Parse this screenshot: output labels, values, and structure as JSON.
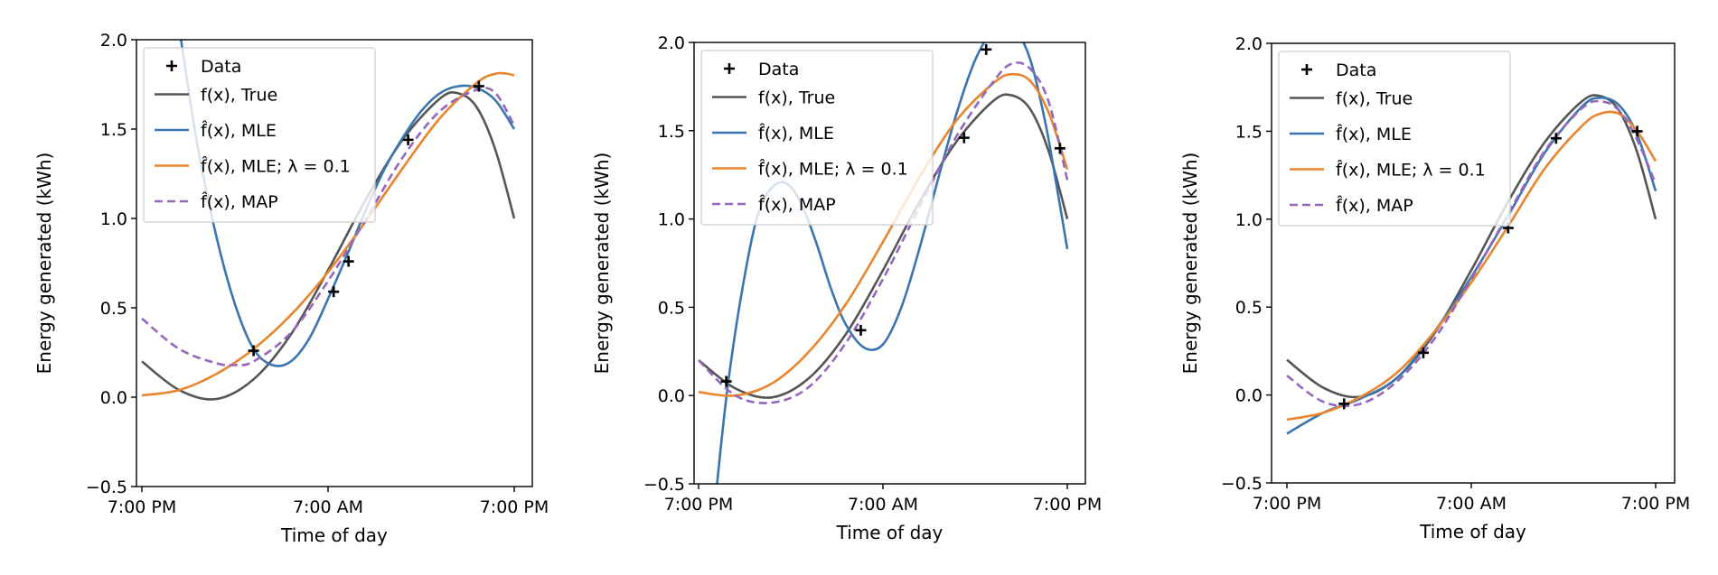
{
  "chart_data": [
    {
      "type": "line",
      "xlabel": "Time of day",
      "ylabel": "Energy generated (kWh)",
      "xlim": [
        0,
        1
      ],
      "ylim": [
        -0.5,
        2.0
      ],
      "xticks": [
        {
          "v": 0,
          "label": "7:00 PM"
        },
        {
          "v": 0.5,
          "label": "7:00 AM"
        },
        {
          "v": 1,
          "label": "7:00 PM"
        }
      ],
      "yticks": [
        {
          "v": -0.5,
          "label": "−0.5"
        },
        {
          "v": 0.0,
          "label": "0.0"
        },
        {
          "v": 0.5,
          "label": "0.5"
        },
        {
          "v": 1.0,
          "label": "1.0"
        },
        {
          "v": 1.5,
          "label": "1.5"
        },
        {
          "v": 2.0,
          "label": "2.0"
        }
      ],
      "legend": {
        "location": "upper-left"
      },
      "points": {
        "name": "Data",
        "x": [
          0.3,
          0.515,
          0.555,
          0.715,
          0.905
        ],
        "y": [
          0.26,
          0.59,
          0.76,
          1.44,
          1.74
        ]
      },
      "series": [
        {
          "name": "f(x), True",
          "color": "#555555",
          "style": "solid",
          "x": [
            0,
            0.1,
            0.2,
            0.3,
            0.4,
            0.5,
            0.6,
            0.7,
            0.8,
            0.85,
            0.9,
            0.95,
            1.0
          ],
          "y": [
            0.2,
            0.04,
            -0.01,
            0.1,
            0.35,
            0.71,
            1.1,
            1.44,
            1.67,
            1.7,
            1.62,
            1.38,
            1.0
          ]
        },
        {
          "name": "f̂(x), MLE",
          "color": "#3a75b0",
          "style": "solid",
          "x": [
            0.105,
            0.15,
            0.2,
            0.25,
            0.3,
            0.35,
            0.4,
            0.45,
            0.5,
            0.55,
            0.6,
            0.65,
            0.7,
            0.75,
            0.8,
            0.85,
            0.9,
            0.95,
            1.0
          ],
          "y": [
            2.0,
            1.4,
            0.9,
            0.52,
            0.27,
            0.18,
            0.2,
            0.33,
            0.55,
            0.79,
            1.04,
            1.27,
            1.45,
            1.6,
            1.7,
            1.74,
            1.73,
            1.66,
            1.5
          ]
        },
        {
          "name": "f̂(x), MLE; λ = 0.1",
          "color": "#e9852c",
          "style": "solid",
          "x": [
            0,
            0.1,
            0.2,
            0.3,
            0.4,
            0.5,
            0.6,
            0.7,
            0.8,
            0.9,
            0.95,
            0.98,
            1.0
          ],
          "y": [
            0.01,
            0.04,
            0.13,
            0.27,
            0.46,
            0.7,
            0.98,
            1.28,
            1.56,
            1.76,
            1.81,
            1.81,
            1.8
          ]
        },
        {
          "name": "f̂(x), MAP",
          "color": "#9467bd",
          "style": "dashed",
          "x": [
            0,
            0.1,
            0.2,
            0.25,
            0.3,
            0.4,
            0.5,
            0.6,
            0.7,
            0.8,
            0.9,
            0.95,
            1.0
          ],
          "y": [
            0.44,
            0.27,
            0.19,
            0.18,
            0.2,
            0.36,
            0.65,
            0.99,
            1.34,
            1.6,
            1.72,
            1.7,
            1.52
          ]
        }
      ]
    },
    {
      "type": "line",
      "xlabel": "Time of day",
      "ylabel": "Energy generated (kWh)",
      "xlim": [
        0,
        1
      ],
      "ylim": [
        -0.5,
        2.0
      ],
      "xticks": [
        {
          "v": 0,
          "label": "7:00 PM"
        },
        {
          "v": 0.5,
          "label": "7:00 AM"
        },
        {
          "v": 1,
          "label": "7:00 PM"
        }
      ],
      "yticks": [
        {
          "v": -0.5,
          "label": "−0.5"
        },
        {
          "v": 0.0,
          "label": "0.0"
        },
        {
          "v": 0.5,
          "label": "0.5"
        },
        {
          "v": 1.0,
          "label": "1.0"
        },
        {
          "v": 1.5,
          "label": "1.5"
        },
        {
          "v": 2.0,
          "label": "2.0"
        }
      ],
      "legend": {
        "location": "upper-left"
      },
      "points": {
        "name": "Data",
        "x": [
          0.075,
          0.44,
          0.72,
          0.78,
          0.98
        ],
        "y": [
          0.08,
          0.37,
          1.46,
          1.96,
          1.4
        ]
      },
      "series": [
        {
          "name": "f(x), True",
          "color": "#555555",
          "style": "solid",
          "x": [
            0,
            0.1,
            0.2,
            0.3,
            0.4,
            0.5,
            0.6,
            0.7,
            0.8,
            0.85,
            0.9,
            0.95,
            1.0
          ],
          "y": [
            0.2,
            0.04,
            -0.01,
            0.1,
            0.35,
            0.71,
            1.1,
            1.44,
            1.67,
            1.7,
            1.62,
            1.38,
            1.0
          ]
        },
        {
          "name": "f̂(x), MLE",
          "color": "#3a75b0",
          "style": "solid",
          "x": [
            0.05,
            0.08,
            0.12,
            0.16,
            0.2,
            0.24,
            0.28,
            0.32,
            0.36,
            0.4,
            0.45,
            0.5,
            0.55,
            0.6,
            0.65,
            0.7,
            0.75,
            0.8,
            0.833,
            0.86,
            0.9,
            0.94,
            0.97,
            1.0
          ],
          "y": [
            -0.5,
            0.07,
            0.62,
            1.02,
            1.18,
            1.2,
            1.08,
            0.86,
            0.6,
            0.4,
            0.27,
            0.29,
            0.5,
            0.84,
            1.23,
            1.6,
            1.9,
            2.08,
            2.12,
            2.08,
            1.9,
            1.55,
            1.2,
            0.83
          ]
        },
        {
          "name": "f̂(x), MLE; λ = 0.1",
          "color": "#e9852c",
          "style": "solid",
          "x": [
            0,
            0.1,
            0.2,
            0.3,
            0.4,
            0.5,
            0.6,
            0.7,
            0.8,
            0.85,
            0.9,
            0.95,
            1.0
          ],
          "y": [
            0.02,
            0.0,
            0.07,
            0.25,
            0.52,
            0.87,
            1.24,
            1.56,
            1.77,
            1.82,
            1.78,
            1.6,
            1.28
          ]
        },
        {
          "name": "f̂(x), MAP",
          "color": "#9467bd",
          "style": "dashed",
          "x": [
            0,
            0.1,
            0.2,
            0.3,
            0.4,
            0.5,
            0.6,
            0.7,
            0.8,
            0.85,
            0.9,
            0.95,
            1.0
          ],
          "y": [
            0.2,
            0.0,
            -0.04,
            0.05,
            0.3,
            0.66,
            1.07,
            1.47,
            1.78,
            1.88,
            1.85,
            1.66,
            1.22
          ]
        }
      ]
    },
    {
      "type": "line",
      "xlabel": "Time of day",
      "ylabel": "Energy generated (kWh)",
      "xlim": [
        0,
        1
      ],
      "ylim": [
        -0.5,
        2.0
      ],
      "xticks": [
        {
          "v": 0,
          "label": "7:00 PM"
        },
        {
          "v": 0.5,
          "label": "7:00 AM"
        },
        {
          "v": 1,
          "label": "7:00 PM"
        }
      ],
      "yticks": [
        {
          "v": -0.5,
          "label": "−0.5"
        },
        {
          "v": 0.0,
          "label": "0.0"
        },
        {
          "v": 0.5,
          "label": "0.5"
        },
        {
          "v": 1.0,
          "label": "1.0"
        },
        {
          "v": 1.5,
          "label": "1.5"
        },
        {
          "v": 2.0,
          "label": "2.0"
        }
      ],
      "legend": {
        "location": "upper-left"
      },
      "points": {
        "name": "Data",
        "x": [
          0.155,
          0.37,
          0.6,
          0.73,
          0.95
        ],
        "y": [
          -0.05,
          0.24,
          0.95,
          1.46,
          1.5
        ]
      },
      "series": [
        {
          "name": "f(x), True",
          "color": "#555555",
          "style": "solid",
          "x": [
            0,
            0.1,
            0.2,
            0.3,
            0.4,
            0.5,
            0.6,
            0.7,
            0.8,
            0.85,
            0.9,
            0.95,
            1.0
          ],
          "y": [
            0.2,
            0.04,
            -0.01,
            0.1,
            0.35,
            0.71,
            1.1,
            1.44,
            1.67,
            1.7,
            1.62,
            1.38,
            1.0
          ]
        },
        {
          "name": "f̂(x), MLE",
          "color": "#3a75b0",
          "style": "solid",
          "x": [
            0,
            0.1,
            0.2,
            0.3,
            0.4,
            0.5,
            0.6,
            0.7,
            0.8,
            0.85,
            0.9,
            0.95,
            1.0
          ],
          "y": [
            -0.22,
            -0.1,
            -0.02,
            0.1,
            0.36,
            0.67,
            1.02,
            1.38,
            1.64,
            1.69,
            1.65,
            1.48,
            1.16
          ]
        },
        {
          "name": "f̂(x), MLE; λ = 0.1",
          "color": "#e9852c",
          "style": "solid",
          "x": [
            0,
            0.1,
            0.2,
            0.3,
            0.4,
            0.5,
            0.6,
            0.7,
            0.8,
            0.85,
            0.9,
            0.95,
            1.0
          ],
          "y": [
            -0.14,
            -0.1,
            -0.01,
            0.13,
            0.36,
            0.64,
            0.96,
            1.29,
            1.53,
            1.6,
            1.6,
            1.5,
            1.33
          ]
        },
        {
          "name": "f̂(x), MAP",
          "color": "#9467bd",
          "style": "dashed",
          "x": [
            0,
            0.1,
            0.2,
            0.3,
            0.4,
            0.5,
            0.6,
            0.7,
            0.8,
            0.85,
            0.9,
            0.95,
            1.0
          ],
          "y": [
            0.11,
            -0.04,
            -0.05,
            0.08,
            0.32,
            0.66,
            1.03,
            1.39,
            1.63,
            1.67,
            1.62,
            1.45,
            1.2
          ]
        }
      ]
    }
  ]
}
